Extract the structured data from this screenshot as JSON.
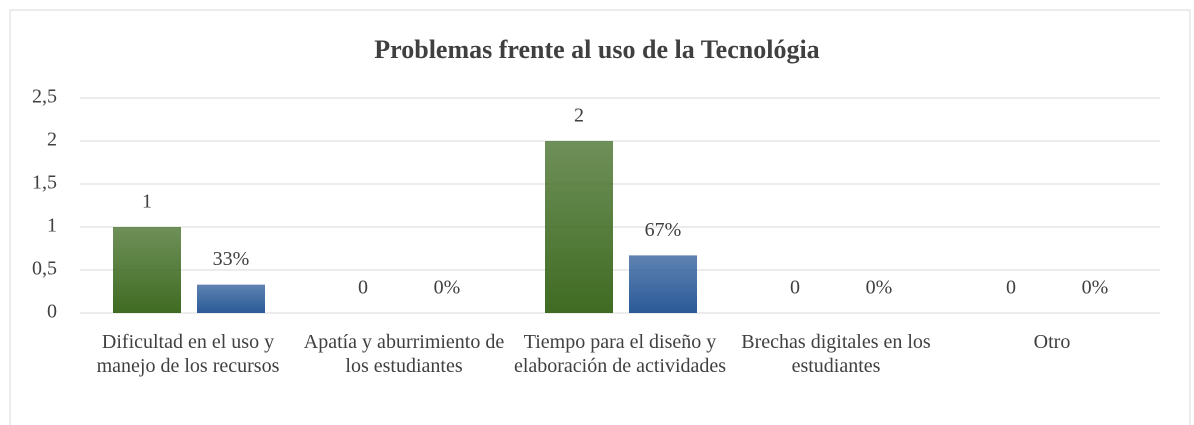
{
  "chart_data": {
    "type": "bar",
    "title": "Problemas frente al uso de la Tecnológia",
    "categories": [
      "Dificultad en el uso y manejo de los recursos",
      "Apatía y aburrimiento de los estudiantes",
      "Tiempo para el diseño y elaboración de actividades",
      "Brechas digitales en los estudiantes",
      "Otro"
    ],
    "series": [
      {
        "color": "#3f6b22",
        "values": [
          1,
          0,
          2,
          0,
          0
        ]
      },
      {
        "color": "#2a5a98",
        "values": [
          0.33,
          0,
          0.67,
          0,
          0
        ],
        "value_labels": [
          "33%",
          "0%",
          "67%",
          "0%",
          "0%"
        ]
      }
    ],
    "ylim": [
      0,
      2.5
    ],
    "yticks": [
      0,
      {
        "value": 0.5,
        "label": "0,5"
      },
      1,
      {
        "value": 1.5,
        "label": "1,5"
      },
      2,
      {
        "value": 2.5,
        "label": "2,5"
      }
    ],
    "grid": true
  }
}
